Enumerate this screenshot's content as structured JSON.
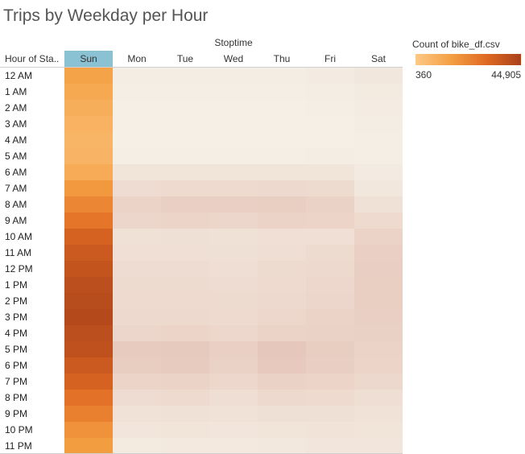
{
  "chart_data": {
    "type": "heatmap",
    "title": "Trips by Weekday per Hour",
    "column_axis_title": "Stoptime",
    "row_axis_title": "Hour of Sta..",
    "selected_column": "Sun",
    "columns": [
      "Sun",
      "Mon",
      "Tue",
      "Wed",
      "Thu",
      "Fri",
      "Sat"
    ],
    "rows": [
      "12 AM",
      "1 AM",
      "2 AM",
      "3 AM",
      "4 AM",
      "5 AM",
      "6 AM",
      "7 AM",
      "8 AM",
      "9 AM",
      "10 AM",
      "11 AM",
      "12 PM",
      "1 PM",
      "2 PM",
      "3 PM",
      "4 PM",
      "5 PM",
      "6 PM",
      "7 PM",
      "8 PM",
      "9 PM",
      "10 PM",
      "11 PM"
    ],
    "values": [
      [
        14000,
        600,
        600,
        600,
        600,
        800,
        1200
      ],
      [
        12000,
        500,
        500,
        500,
        500,
        600,
        900
      ],
      [
        10000,
        400,
        400,
        400,
        400,
        450,
        700
      ],
      [
        8500,
        380,
        380,
        380,
        380,
        400,
        600
      ],
      [
        7500,
        370,
        370,
        370,
        370,
        380,
        500
      ],
      [
        8000,
        500,
        500,
        500,
        500,
        550,
        500
      ],
      [
        11000,
        1400,
        1500,
        1500,
        1500,
        1400,
        800
      ],
      [
        17000,
        2200,
        2400,
        2400,
        2500,
        2300,
        1200
      ],
      [
        22000,
        3200,
        3500,
        3500,
        3800,
        3300,
        1800
      ],
      [
        27000,
        2800,
        3000,
        2900,
        3200,
        3000,
        2400
      ],
      [
        33000,
        1800,
        1900,
        1800,
        2000,
        2000,
        3200
      ],
      [
        36000,
        2000,
        2000,
        1900,
        2100,
        2300,
        3500
      ],
      [
        38000,
        2200,
        2200,
        2100,
        2300,
        2500,
        3700
      ],
      [
        40000,
        2300,
        2300,
        2200,
        2400,
        2700,
        3800
      ],
      [
        41000,
        2400,
        2400,
        2300,
        2500,
        2900,
        3800
      ],
      [
        42000,
        2500,
        2500,
        2400,
        2700,
        3100,
        3600
      ],
      [
        40000,
        2900,
        3000,
        2700,
        3100,
        3300,
        3400
      ],
      [
        39000,
        4200,
        4400,
        3500,
        4800,
        4000,
        3200
      ],
      [
        36000,
        4000,
        4200,
        3300,
        4500,
        3700,
        3000
      ],
      [
        33000,
        3000,
        3200,
        2700,
        3300,
        3000,
        2600
      ],
      [
        28000,
        2200,
        2400,
        2100,
        2500,
        2400,
        2100
      ],
      [
        24000,
        1700,
        1800,
        1700,
        1900,
        1900,
        1700
      ],
      [
        19000,
        1300,
        1400,
        1300,
        1500,
        1600,
        1500
      ],
      [
        16000,
        900,
        1000,
        1000,
        1100,
        1300,
        1300
      ]
    ],
    "color_scale": {
      "title": "Count of bike_df.csv",
      "min_label": "360",
      "max_label": "44,905",
      "min": 360,
      "max": 44905,
      "palette": [
        "#fdc886",
        "#f4a043",
        "#e06a22",
        "#a9411b"
      ],
      "muted_palette": [
        "#f5efe6",
        "#ebd3c7",
        "#e2bfb3"
      ]
    },
    "legend_position": "top-right",
    "grid": false
  }
}
